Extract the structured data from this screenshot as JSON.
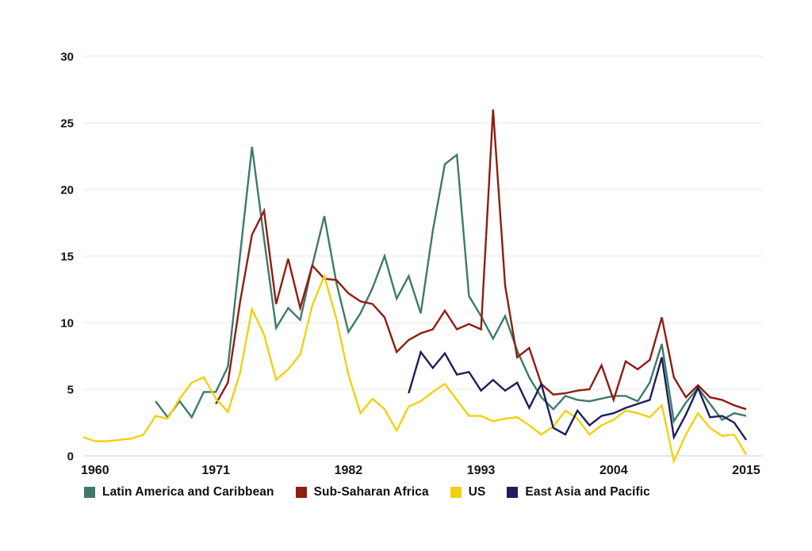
{
  "chart_data": {
    "type": "line",
    "title": "",
    "xlabel": "",
    "ylabel": "",
    "background_color": "#ffffff",
    "gridline_color": "#ebebeb",
    "axis_line_color": "#d6d6d6",
    "text_color": "#141414",
    "grid": "horizontal-only",
    "legend_position": "bottom-left",
    "x_axis": {
      "range": [
        1960,
        2015
      ],
      "tick_years": [
        1960,
        1971,
        1982,
        1993,
        2004,
        2015
      ],
      "tick_labels": [
        "1960",
        "1971",
        "1982",
        "1993",
        "2004",
        "2015"
      ]
    },
    "y_axis": {
      "range": [
        0,
        30
      ],
      "tick_values": [
        0,
        5,
        10,
        15,
        20,
        25,
        30
      ],
      "tick_labels": [
        "0",
        "5",
        "10",
        "15",
        "20",
        "25",
        "30"
      ]
    },
    "series": [
      {
        "name": "Latin America and Caribbean",
        "slug": "latin-america-and-caribbean",
        "color": "#3E7A6B",
        "start_year": 1966,
        "values": [
          4.1,
          2.9,
          4.1,
          2.9,
          4.8,
          4.8,
          6.7,
          15.0,
          23.2,
          16.3,
          9.6,
          11.1,
          10.2,
          14.3,
          18.0,
          13.0,
          9.3,
          10.7,
          12.6,
          15.0,
          11.8,
          13.5,
          10.7,
          16.9,
          21.9,
          22.6,
          12.0,
          10.5,
          8.8,
          10.5,
          7.9,
          5.9,
          4.4,
          3.5,
          4.5,
          4.2,
          4.1,
          4.3,
          4.5,
          4.5,
          4.1,
          5.5,
          8.4,
          2.6,
          4.0,
          5.1,
          3.9,
          2.7,
          3.2,
          3.0
        ]
      },
      {
        "name": "Sub-Saharan Africa",
        "slug": "sub-saharan-africa",
        "color": "#8F1D10",
        "start_year": 1971,
        "values": [
          3.9,
          5.5,
          11.5,
          16.6,
          18.4,
          11.4,
          14.8,
          11.1,
          14.3,
          13.3,
          13.2,
          12.2,
          11.6,
          11.4,
          10.4,
          7.8,
          8.7,
          9.2,
          9.5,
          10.9,
          9.5,
          9.9,
          9.5,
          26.0,
          12.8,
          7.4,
          8.1,
          5.4,
          4.6,
          4.7,
          4.9,
          5.0,
          6.8,
          4.2,
          7.1,
          6.5,
          7.2,
          10.4,
          5.9,
          4.4,
          5.3,
          4.4,
          4.2,
          3.8,
          3.5
        ]
      },
      {
        "name": "US",
        "slug": "us",
        "color": "#F3D00F",
        "start_year": 1960,
        "values": [
          1.4,
          1.1,
          1.1,
          1.2,
          1.3,
          1.6,
          3.0,
          2.8,
          4.3,
          5.5,
          5.9,
          4.3,
          3.3,
          6.2,
          11.0,
          9.1,
          5.7,
          6.5,
          7.6,
          11.3,
          13.5,
          10.3,
          6.1,
          3.2,
          4.3,
          3.5,
          1.9,
          3.7,
          4.1,
          4.8,
          5.4,
          4.2,
          3.0,
          3.0,
          2.6,
          2.8,
          2.9,
          2.3,
          1.6,
          2.2,
          3.4,
          2.8,
          1.6,
          2.3,
          2.7,
          3.4,
          3.2,
          2.9,
          3.8,
          -0.4,
          1.6,
          3.2,
          2.1,
          1.5,
          1.6,
          0.1
        ]
      },
      {
        "name": "East Asia and Pacific",
        "slug": "east-asia-and-pacific",
        "color": "#1D1D5C",
        "start_year": 1987,
        "values": [
          4.7,
          7.8,
          6.6,
          7.7,
          6.1,
          6.3,
          4.9,
          5.7,
          4.9,
          5.5,
          3.6,
          5.4,
          2.1,
          1.6,
          3.4,
          2.3,
          3.0,
          3.2,
          3.6,
          3.9,
          4.2,
          7.4,
          1.4,
          3.1,
          5.1,
          2.9,
          3.0,
          2.5,
          1.2
        ]
      }
    ]
  }
}
